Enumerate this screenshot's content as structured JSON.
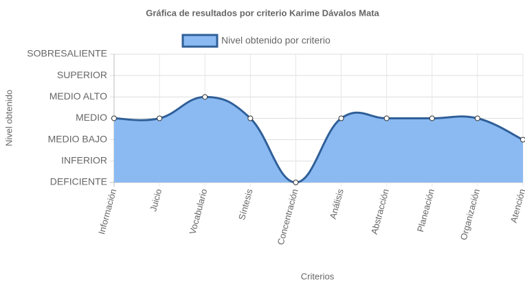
{
  "chart_data": {
    "type": "line",
    "title": "Gráfica de resultados por criterio Karime Dávalos Mata",
    "x_label": "Criterios",
    "y_label": "Nivel obtenido",
    "categories": [
      "Información",
      "Juicio",
      "Vocabulario",
      "Síntesis",
      "Concentración",
      "Análisis",
      "Abstracción",
      "Planeación",
      "Organización",
      "Atención"
    ],
    "series": [
      {
        "name": "Nivel obtenido por criterio",
        "color": "#2f5f98",
        "fill": "#8bbaf3",
        "values": [
          3,
          3,
          4,
          3,
          0,
          3,
          3,
          3,
          3,
          2
        ]
      }
    ],
    "ylim": [
      0,
      6
    ],
    "yticks": [
      {
        "value": 0,
        "label": "DEFICIENTE"
      },
      {
        "value": 1,
        "label": "INFERIOR"
      },
      {
        "value": 2,
        "label": "MEDIO BAJO"
      },
      {
        "value": 3,
        "label": "MEDIO"
      },
      {
        "value": 4,
        "label": "MEDIO ALTO"
      },
      {
        "value": 5,
        "label": "SUPERIOR"
      },
      {
        "value": 6,
        "label": "SOBRESALIENTE"
      }
    ],
    "grid": true,
    "legend": "top"
  }
}
